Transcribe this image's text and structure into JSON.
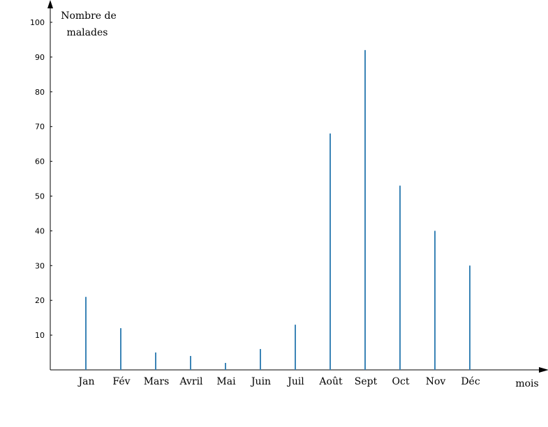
{
  "chart_data": {
    "type": "bar",
    "style": "stem",
    "ylabel": [
      "Nombre de",
      "malades"
    ],
    "xlabel": "mois",
    "categories": [
      "Jan",
      "Fév",
      "Mars",
      "Avril",
      "Mai",
      "Juin",
      "Juil",
      "Août",
      "Sept",
      "Oct",
      "Nov",
      "Déc"
    ],
    "values": [
      21,
      12,
      5,
      4,
      2,
      6,
      13,
      68,
      92,
      53,
      40,
      30
    ],
    "yticks": [
      10,
      20,
      30,
      40,
      50,
      60,
      70,
      80,
      90,
      100
    ],
    "ylim": [
      0,
      100
    ],
    "grid": false,
    "colors": {
      "bar": "#3b84b6",
      "axis": "#000000"
    }
  }
}
